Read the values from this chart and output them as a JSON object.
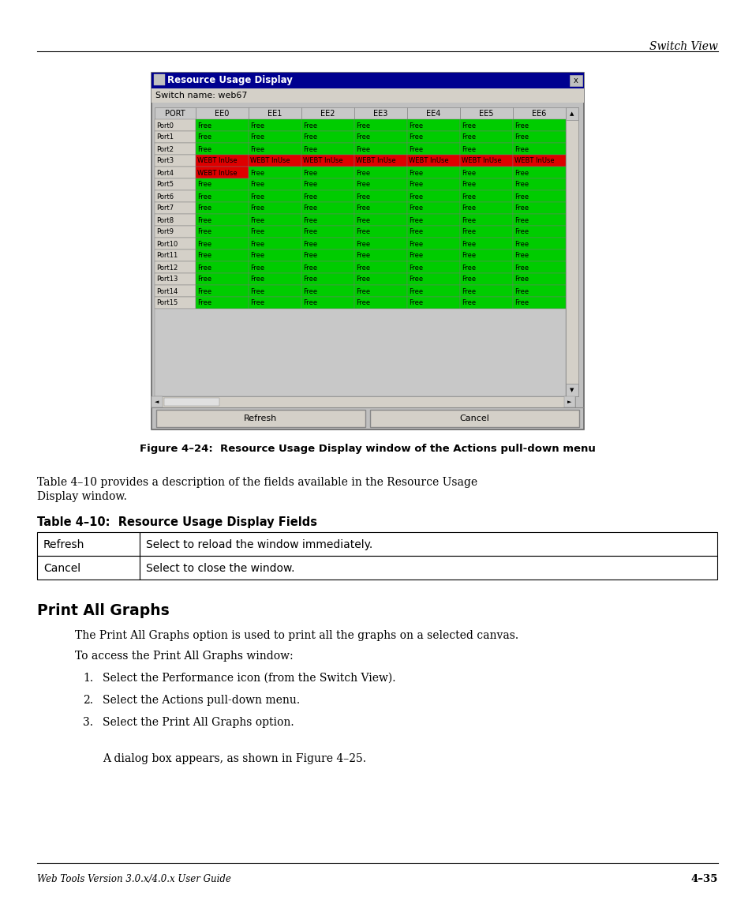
{
  "page_header_right": "Switch View",
  "figure_caption": "Figure 4–24:  Resource Usage Display window of the Actions pull-down menu",
  "para1_line1": "Table 4–10 provides a description of the fields available in the Resource Usage",
  "para1_line2": "Display window.",
  "table_title": "Table 4–10:  Resource Usage Display Fields",
  "table_rows": [
    [
      "Refresh",
      "Select to reload the window immediately."
    ],
    [
      "Cancel",
      "Select to close the window."
    ]
  ],
  "section_heading": "Print All Graphs",
  "body1": "The Print All Graphs option is used to print all the graphs on a selected canvas.",
  "body2": "To access the Print All Graphs window:",
  "list_items": [
    "Select the Performance icon (from the Switch View).",
    "Select the Actions pull-down menu.",
    "Select the Print All Graphs option."
  ],
  "sub_note": "A dialog box appears, as shown in Figure 4–25.",
  "footer_left": "Web Tools Version 3.0.x/4.0.x User Guide",
  "footer_right": "4–35",
  "dialog_title": "Resource Usage Display",
  "dialog_switch": "Switch name: web67",
  "dialog_columns": [
    "PORT",
    "EE0",
    "EE1",
    "EE2",
    "EE3",
    "EE4",
    "EE5",
    "EE6"
  ],
  "dialog_rows": [
    [
      "Port0",
      "Free",
      "Free",
      "Free",
      "Free",
      "Free",
      "Free",
      "Free"
    ],
    [
      "Port1",
      "Free",
      "Free",
      "Free",
      "Free",
      "Free",
      "Free",
      "Free"
    ],
    [
      "Port2",
      "Free",
      "Free",
      "Free",
      "Free",
      "Free",
      "Free",
      "Free"
    ],
    [
      "Port3",
      "WEBT InUse",
      "WEBT InUse",
      "WEBT InUse",
      "WEBT InUse",
      "WEBT InUse",
      "WEBT InUse",
      "WEBT InUse"
    ],
    [
      "Port4",
      "WEBT InUse",
      "Free",
      "Free",
      "Free",
      "Free",
      "Free",
      "Free"
    ],
    [
      "Port5",
      "Free",
      "Free",
      "Free",
      "Free",
      "Free",
      "Free",
      "Free"
    ],
    [
      "Port6",
      "Free",
      "Free",
      "Free",
      "Free",
      "Free",
      "Free",
      "Free"
    ],
    [
      "Port7",
      "Free",
      "Free",
      "Free",
      "Free",
      "Free",
      "Free",
      "Free"
    ],
    [
      "Port8",
      "Free",
      "Free",
      "Free",
      "Free",
      "Free",
      "Free",
      "Free"
    ],
    [
      "Port9",
      "Free",
      "Free",
      "Free",
      "Free",
      "Free",
      "Free",
      "Free"
    ],
    [
      "Port10",
      "Free",
      "Free",
      "Free",
      "Free",
      "Free",
      "Free",
      "Free"
    ],
    [
      "Port11",
      "Free",
      "Free",
      "Free",
      "Free",
      "Free",
      "Free",
      "Free"
    ],
    [
      "Port12",
      "Free",
      "Free",
      "Free",
      "Free",
      "Free",
      "Free",
      "Free"
    ],
    [
      "Port13",
      "Free",
      "Free",
      "Free",
      "Free",
      "Free",
      "Free",
      "Free"
    ],
    [
      "Port14",
      "Free",
      "Free",
      "Free",
      "Free",
      "Free",
      "Free",
      "Free"
    ],
    [
      "Port15",
      "Free",
      "Free",
      "Free",
      "Free",
      "Free",
      "Free",
      "Free"
    ]
  ],
  "green_color": "#00CC00",
  "red_color": "#DD0000",
  "dialog_title_bg": "#000090",
  "dialog_bg": "#C0C0C0",
  "bg_color": "#FFFFFF"
}
